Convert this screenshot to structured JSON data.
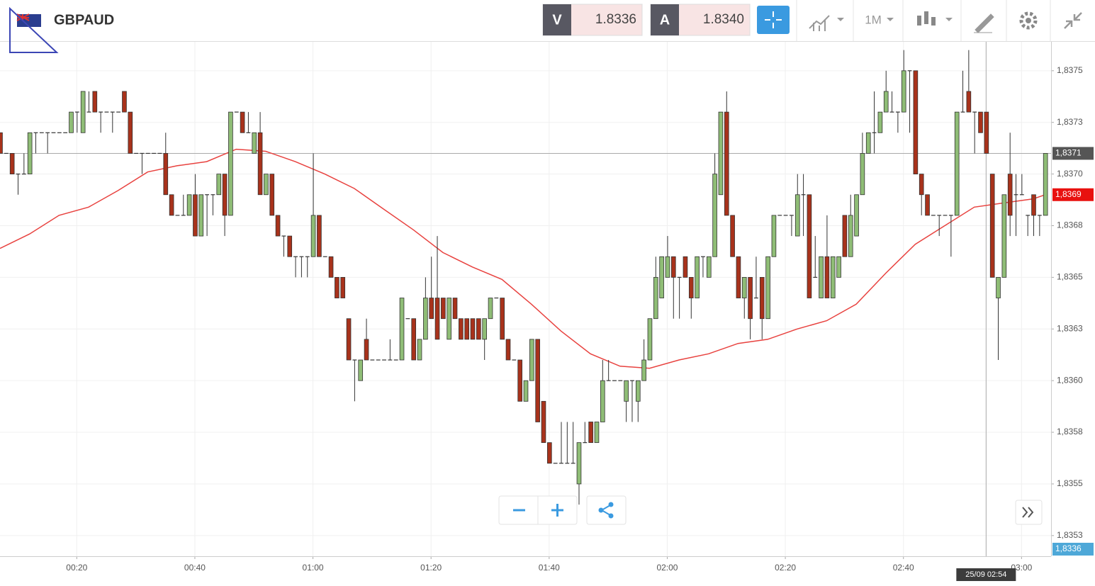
{
  "header": {
    "symbol": "GBPAUD",
    "sell_label": "V",
    "sell_price": "1.8336",
    "buy_label": "A",
    "buy_price": "1.8340",
    "timeframe": "1M"
  },
  "chart_data": {
    "type": "candlestick",
    "x": [
      "00:07",
      "00:08",
      "00:09",
      "00:10",
      "00:11",
      "00:12",
      "00:13",
      "00:14",
      "00:15",
      "00:16",
      "00:17",
      "00:18",
      "00:19",
      "00:20",
      "00:21",
      "00:22",
      "00:23",
      "00:24",
      "00:25",
      "00:26",
      "00:27",
      "00:28",
      "00:29",
      "00:30",
      "00:31",
      "00:32",
      "00:33",
      "00:34",
      "00:35",
      "00:36",
      "00:37",
      "00:38",
      "00:39",
      "00:40",
      "00:41",
      "00:42",
      "00:43",
      "00:44",
      "00:45",
      "00:46",
      "00:47",
      "00:48",
      "00:49",
      "00:50",
      "00:51",
      "00:52",
      "00:53",
      "00:54",
      "00:55",
      "00:56",
      "00:57",
      "00:58",
      "00:59",
      "01:00",
      "01:01",
      "01:02",
      "01:03",
      "01:04",
      "01:05",
      "01:06",
      "01:07",
      "01:08",
      "01:09",
      "01:10",
      "01:11",
      "01:12",
      "01:13",
      "01:14",
      "01:15",
      "01:16",
      "01:17",
      "01:18",
      "01:19",
      "01:20",
      "01:21",
      "01:22",
      "01:23",
      "01:24",
      "01:25",
      "01:26",
      "01:27",
      "01:28",
      "01:29",
      "01:30",
      "01:31",
      "01:32",
      "01:33",
      "01:34",
      "01:35",
      "01:36",
      "01:37",
      "01:38",
      "01:39",
      "01:40",
      "01:41",
      "01:42",
      "01:43",
      "01:44",
      "01:45",
      "01:46",
      "01:47",
      "01:48",
      "01:49",
      "01:50",
      "01:51",
      "01:52",
      "01:53",
      "01:54",
      "01:55",
      "01:56",
      "01:57",
      "01:58",
      "01:59",
      "02:00",
      "02:01",
      "02:02",
      "02:03",
      "02:04",
      "02:05",
      "02:06",
      "02:07",
      "02:08",
      "02:09",
      "02:10",
      "02:11",
      "02:12",
      "02:13",
      "02:14",
      "02:15",
      "02:16",
      "02:17",
      "02:18",
      "02:19",
      "02:20",
      "02:21",
      "02:22",
      "02:23",
      "02:24",
      "02:25",
      "02:26",
      "02:27",
      "02:28",
      "02:29",
      "02:30",
      "02:31",
      "02:32",
      "02:33",
      "02:34",
      "02:35",
      "02:36",
      "02:37",
      "02:38",
      "02:39",
      "02:40",
      "02:41",
      "02:42",
      "02:43",
      "02:44",
      "02:45",
      "02:46",
      "02:47",
      "02:48",
      "02:49",
      "02:50",
      "02:51",
      "02:52",
      "02:53",
      "02:54",
      "02:55",
      "02:56",
      "02:57",
      "02:58",
      "02:59",
      "03:00",
      "03:01",
      "03:02",
      "03:03",
      "03:04"
    ],
    "open": [
      1.8372,
      1.8371,
      1.8371,
      1.837,
      1.837,
      1.837,
      1.8372,
      1.8372,
      1.8372,
      1.8372,
      1.8372,
      1.8372,
      1.8372,
      1.8373,
      1.8372,
      1.8373,
      1.8374,
      1.8373,
      1.8373,
      1.8373,
      1.8373,
      1.8374,
      1.8373,
      1.8371,
      1.8371,
      1.8371,
      1.8371,
      1.8371,
      1.8371,
      1.8369,
      1.8368,
      1.8368,
      1.8368,
      1.8369,
      1.8367,
      1.8369,
      1.8369,
      1.8369,
      1.837,
      1.8368,
      1.8373,
      1.8373,
      1.8372,
      1.8371,
      1.8372,
      1.8369,
      1.837,
      1.8368,
      1.8367,
      1.8367,
      1.8366,
      1.8366,
      1.8366,
      1.8366,
      1.8368,
      1.8366,
      1.8366,
      1.8365,
      1.8365,
      1.8363,
      1.8361,
      1.836,
      1.8362,
      1.8361,
      1.8361,
      1.8361,
      1.8361,
      1.8361,
      1.8361,
      1.8363,
      1.8363,
      1.8361,
      1.8362,
      1.8364,
      1.8364,
      1.8364,
      1.8362,
      1.8364,
      1.8363,
      1.8363,
      1.8363,
      1.8363,
      1.8362,
      1.8363,
      1.8364,
      1.8364,
      1.8362,
      1.8361,
      1.8361,
      1.8359,
      1.836,
      1.8362,
      1.8359,
      1.8357,
      1.8356,
      1.8356,
      1.8356,
      1.8356,
      1.8355,
      1.8357,
      1.8358,
      1.8357,
      1.8358,
      1.836,
      1.836,
      1.836,
      1.8359,
      1.836,
      1.8359,
      1.836,
      1.8361,
      1.8363,
      1.8364,
      1.8365,
      1.8366,
      1.8365,
      1.8366,
      1.8365,
      1.8364,
      1.8366,
      1.8365,
      1.8366,
      1.8369,
      1.8373,
      1.8368,
      1.8366,
      1.8364,
      1.8365,
      1.8364,
      1.8365,
      1.8363,
      1.8366,
      1.8368,
      1.8368,
      1.8368,
      1.8367,
      1.8369,
      1.8369,
      1.8365,
      1.8364,
      1.8366,
      1.8364,
      1.8365,
      1.8368,
      1.8366,
      1.8367,
      1.8369,
      1.8371,
      1.8372,
      1.8372,
      1.8373,
      1.8373,
      1.8373,
      1.8373,
      1.8375,
      1.8375,
      1.837,
      1.8369,
      1.8368,
      1.8368,
      1.8368,
      1.8368,
      1.8368,
      1.8373,
      1.8374,
      1.8373,
      1.8373,
      1.8373,
      1.837,
      1.8364,
      1.8365,
      1.837,
      1.8369,
      1.8369,
      1.8368,
      1.8369,
      1.8368,
      1.8368
    ],
    "high": [
      1.8372,
      1.8371,
      1.8371,
      1.837,
      1.8371,
      1.8372,
      1.8372,
      1.8372,
      1.8372,
      1.8372,
      1.8372,
      1.8372,
      1.8373,
      1.8373,
      1.8374,
      1.8374,
      1.8374,
      1.8373,
      1.8373,
      1.8373,
      1.8373,
      1.8374,
      1.8373,
      1.8371,
      1.8371,
      1.8371,
      1.8371,
      1.8371,
      1.8372,
      1.8369,
      1.8368,
      1.8369,
      1.8369,
      1.837,
      1.8369,
      1.8369,
      1.8369,
      1.837,
      1.837,
      1.8373,
      1.8373,
      1.8373,
      1.8373,
      1.8372,
      1.8373,
      1.837,
      1.837,
      1.8368,
      1.8367,
      1.8367,
      1.8366,
      1.8366,
      1.8366,
      1.8371,
      1.8368,
      1.8366,
      1.8366,
      1.8365,
      1.8365,
      1.8363,
      1.8361,
      1.8361,
      1.8363,
      1.8361,
      1.8361,
      1.8361,
      1.8362,
      1.8361,
      1.8364,
      1.8363,
      1.8363,
      1.8362,
      1.8365,
      1.8366,
      1.8367,
      1.8364,
      1.8364,
      1.8364,
      1.8363,
      1.8363,
      1.8363,
      1.8363,
      1.8363,
      1.8364,
      1.8364,
      1.8364,
      1.8362,
      1.8361,
      1.8361,
      1.836,
      1.8362,
      1.8362,
      1.8359,
      1.8357,
      1.8356,
      1.8358,
      1.8358,
      1.8358,
      1.8357,
      1.8358,
      1.8358,
      1.8358,
      1.8361,
      1.8361,
      1.836,
      1.836,
      1.836,
      1.836,
      1.836,
      1.8362,
      1.8363,
      1.8366,
      1.8366,
      1.8367,
      1.8366,
      1.8365,
      1.8366,
      1.8365,
      1.8366,
      1.8366,
      1.8366,
      1.8371,
      1.8373,
      1.8374,
      1.8368,
      1.8366,
      1.8365,
      1.8365,
      1.8366,
      1.8365,
      1.8366,
      1.8368,
      1.8368,
      1.8368,
      1.8368,
      1.837,
      1.837,
      1.8369,
      1.8367,
      1.8366,
      1.8368,
      1.8366,
      1.8366,
      1.8368,
      1.8369,
      1.8369,
      1.8372,
      1.8372,
      1.8374,
      1.8373,
      1.8375,
      1.8374,
      1.8373,
      1.8376,
      1.8375,
      1.8375,
      1.837,
      1.8369,
      1.8368,
      1.8368,
      1.8368,
      1.8368,
      1.8373,
      1.8375,
      1.8376,
      1.8373,
      1.8373,
      1.8373,
      1.837,
      1.8365,
      1.8369,
      1.8372,
      1.837,
      1.837,
      1.8368,
      1.8369,
      1.8368,
      1.8371
    ],
    "low": [
      1.8371,
      1.8371,
      1.837,
      1.8369,
      1.837,
      1.837,
      1.8371,
      1.8372,
      1.8371,
      1.8372,
      1.8372,
      1.8372,
      1.8372,
      1.8372,
      1.8372,
      1.8373,
      1.8373,
      1.8372,
      1.8373,
      1.8372,
      1.8373,
      1.8373,
      1.8371,
      1.8371,
      1.837,
      1.8371,
      1.8371,
      1.8371,
      1.8369,
      1.8368,
      1.8368,
      1.8368,
      1.8368,
      1.8367,
      1.8367,
      1.8367,
      1.8368,
      1.8369,
      1.8367,
      1.8368,
      1.8373,
      1.8372,
      1.8372,
      1.8371,
      1.8369,
      1.8369,
      1.8368,
      1.8367,
      1.8366,
      1.8366,
      1.8365,
      1.8365,
      1.8365,
      1.8366,
      1.8366,
      1.8366,
      1.8365,
      1.8364,
      1.8364,
      1.8361,
      1.8359,
      1.836,
      1.8361,
      1.8361,
      1.8361,
      1.8361,
      1.8361,
      1.8361,
      1.8361,
      1.8363,
      1.8361,
      1.8361,
      1.8362,
      1.8363,
      1.8362,
      1.8363,
      1.8362,
      1.8363,
      1.8362,
      1.8362,
      1.8362,
      1.8362,
      1.8361,
      1.8363,
      1.8364,
      1.8362,
      1.8361,
      1.8361,
      1.8359,
      1.8359,
      1.836,
      1.8358,
      1.8357,
      1.8356,
      1.8356,
      1.8356,
      1.8356,
      1.8356,
      1.8354,
      1.8357,
      1.8357,
      1.8357,
      1.8358,
      1.836,
      1.836,
      1.836,
      1.8358,
      1.8358,
      1.8358,
      1.836,
      1.8361,
      1.8363,
      1.8364,
      1.8365,
      1.8363,
      1.8363,
      1.8365,
      1.8363,
      1.8364,
      1.8365,
      1.8365,
      1.8366,
      1.8369,
      1.8368,
      1.8366,
      1.8364,
      1.8363,
      1.8362,
      1.8364,
      1.8362,
      1.8363,
      1.8366,
      1.8368,
      1.8368,
      1.8367,
      1.8367,
      1.8367,
      1.8364,
      1.8365,
      1.8364,
      1.8364,
      1.8364,
      1.8365,
      1.8366,
      1.8366,
      1.8367,
      1.8369,
      1.8371,
      1.8371,
      1.8372,
      1.8373,
      1.8373,
      1.8372,
      1.8373,
      1.8372,
      1.837,
      1.8368,
      1.8368,
      1.8368,
      1.8367,
      1.8368,
      1.8366,
      1.8368,
      1.8373,
      1.8373,
      1.8371,
      1.8372,
      1.8371,
      1.8365,
      1.8361,
      1.8365,
      1.8367,
      1.8367,
      1.8369,
      1.8367,
      1.8367,
      1.8367,
      1.8368
    ],
    "close": [
      1.8371,
      1.8371,
      1.837,
      1.837,
      1.837,
      1.8372,
      1.8372,
      1.8372,
      1.8372,
      1.8372,
      1.8372,
      1.8372,
      1.8373,
      1.8373,
      1.8374,
      1.8373,
      1.8373,
      1.8373,
      1.8373,
      1.8373,
      1.8373,
      1.8373,
      1.8371,
      1.8371,
      1.8371,
      1.8371,
      1.8371,
      1.8371,
      1.8369,
      1.8368,
      1.8368,
      1.8368,
      1.8369,
      1.8367,
      1.8369,
      1.8369,
      1.8369,
      1.837,
      1.8368,
      1.8373,
      1.8373,
      1.8372,
      1.8372,
      1.8372,
      1.8369,
      1.837,
      1.8368,
      1.8367,
      1.8367,
      1.8366,
      1.8366,
      1.8366,
      1.8366,
      1.8368,
      1.8366,
      1.8366,
      1.8365,
      1.8364,
      1.8364,
      1.8361,
      1.8361,
      1.8361,
      1.8361,
      1.8361,
      1.8361,
      1.8361,
      1.8361,
      1.8361,
      1.8364,
      1.8363,
      1.8361,
      1.8362,
      1.8364,
      1.8363,
      1.8362,
      1.8363,
      1.8364,
      1.8363,
      1.8362,
      1.8362,
      1.8362,
      1.8362,
      1.8363,
      1.8364,
      1.8364,
      1.8362,
      1.8361,
      1.8361,
      1.8359,
      1.836,
      1.8362,
      1.8358,
      1.8357,
      1.8356,
      1.8356,
      1.8356,
      1.8356,
      1.8356,
      1.8357,
      1.8357,
      1.8357,
      1.8358,
      1.836,
      1.836,
      1.836,
      1.836,
      1.836,
      1.836,
      1.836,
      1.8361,
      1.8363,
      1.8365,
      1.8366,
      1.8366,
      1.8365,
      1.8365,
      1.8365,
      1.8364,
      1.8366,
      1.8366,
      1.8366,
      1.837,
      1.8373,
      1.8368,
      1.8366,
      1.8364,
      1.8365,
      1.8363,
      1.8364,
      1.8363,
      1.8366,
      1.8368,
      1.8368,
      1.8368,
      1.8368,
      1.8369,
      1.8369,
      1.8364,
      1.8365,
      1.8366,
      1.8364,
      1.8366,
      1.8366,
      1.8366,
      1.8368,
      1.8369,
      1.8371,
      1.8372,
      1.8372,
      1.8373,
      1.8374,
      1.8373,
      1.8373,
      1.8375,
      1.8375,
      1.837,
      1.8369,
      1.8368,
      1.8368,
      1.8368,
      1.8368,
      1.8368,
      1.8373,
      1.8373,
      1.8373,
      1.8373,
      1.8372,
      1.8371,
      1.8365,
      1.8365,
      1.8369,
      1.8368,
      1.8369,
      1.8369,
      1.8368,
      1.8368,
      1.8368,
      1.8371
    ],
    "up_color": "#8fbd76",
    "down_color": "#a8321b",
    "xlim": [
      "00:07",
      "03:05"
    ],
    "xticks": [
      "00:20",
      "00:40",
      "01:00",
      "01:20",
      "01:40",
      "02:00",
      "02:20",
      "02:40",
      "03:00"
    ],
    "ylim": [
      1.83515,
      1.83764
    ],
    "yticks": [
      {
        "value": 1.8375,
        "label": "1,8375"
      },
      {
        "value": 1.83725,
        "label": "1,8373"
      },
      {
        "value": 1.837,
        "label": "1,8370"
      },
      {
        "value": 1.83675,
        "label": "1,8368"
      },
      {
        "value": 1.8365,
        "label": "1,8365"
      },
      {
        "value": 1.83625,
        "label": "1,8363"
      },
      {
        "value": 1.836,
        "label": "1,8360"
      },
      {
        "value": 1.83575,
        "label": "1,8358"
      },
      {
        "value": 1.8355,
        "label": "1,8355"
      },
      {
        "value": 1.83525,
        "label": "1,8353"
      }
    ],
    "grid": true,
    "overlay": {
      "type": "line",
      "color": "#e8423f",
      "x": [
        "00:07",
        "00:12",
        "00:17",
        "00:22",
        "00:27",
        "00:32",
        "00:37",
        "00:42",
        "00:47",
        "00:52",
        "00:57",
        "01:02",
        "01:07",
        "01:12",
        "01:17",
        "01:22",
        "01:27",
        "01:32",
        "01:37",
        "01:42",
        "01:47",
        "01:52",
        "01:57",
        "02:02",
        "02:07",
        "02:12",
        "02:17",
        "02:22",
        "02:27",
        "02:32",
        "02:37",
        "02:42",
        "02:47",
        "02:52",
        "02:57",
        "03:02",
        "03:04"
      ],
      "values": [
        1.83664,
        1.83671,
        1.8368,
        1.83684,
        1.83692,
        1.83701,
        1.83704,
        1.83706,
        1.83712,
        1.83711,
        1.83706,
        1.837,
        1.83693,
        1.83683,
        1.83673,
        1.83662,
        1.83655,
        1.83649,
        1.83637,
        1.83624,
        1.83613,
        1.83607,
        1.83606,
        1.8361,
        1.83613,
        1.83618,
        1.8362,
        1.83625,
        1.83629,
        1.83637,
        1.83652,
        1.83666,
        1.83675,
        1.83684,
        1.83686,
        1.83688,
        1.8369
      ],
      "last_label": {
        "value": 1.8369,
        "label": "1,8369"
      }
    },
    "crosshair": {
      "label": "25/09 02:54",
      "value": 1.8371,
      "value_label": "1,8371"
    },
    "price_tag": {
      "value": 1.8336,
      "label": "1,8336"
    }
  }
}
